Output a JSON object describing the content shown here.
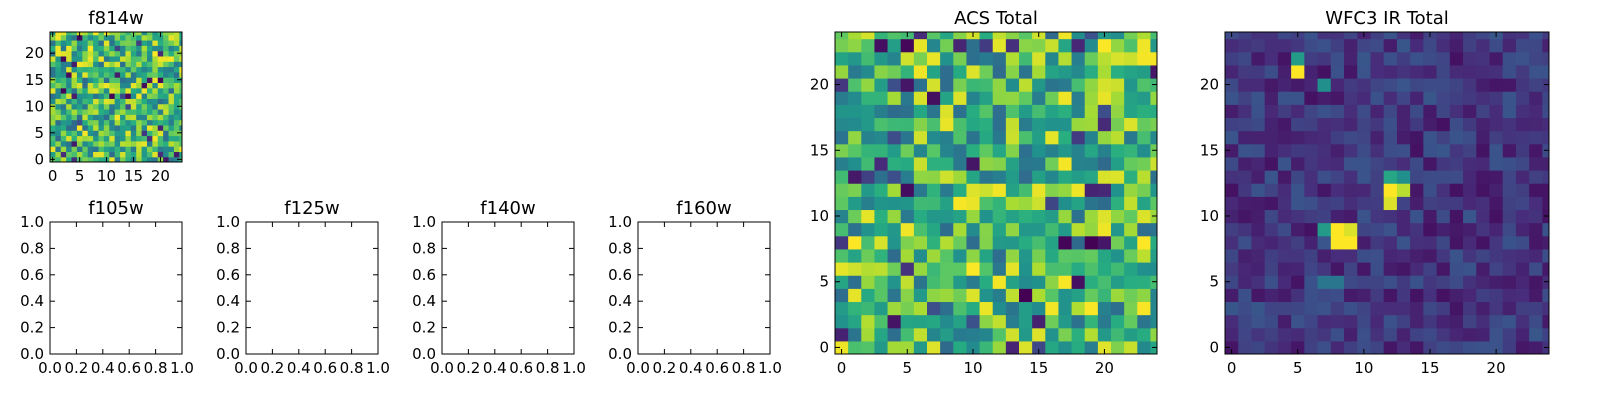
{
  "chart_data": [
    {
      "type": "heatmap",
      "title": "f814w",
      "grid_size": 25,
      "xticks": [
        "0",
        "5",
        "10",
        "15",
        "20"
      ],
      "yticks": [
        "0",
        "5",
        "10",
        "15",
        "20"
      ],
      "colormap": "viridis",
      "pattern": "noise"
    },
    {
      "type": "empty",
      "title": "f105w",
      "xticks": [
        "0.0",
        "0.2",
        "0.4",
        "0.6",
        "0.8",
        "1.0"
      ],
      "yticks": [
        "0.0",
        "0.2",
        "0.4",
        "0.6",
        "0.8",
        "1.0"
      ]
    },
    {
      "type": "empty",
      "title": "f125w",
      "xticks": [
        "0.0",
        "0.2",
        "0.4",
        "0.6",
        "0.8",
        "1.0"
      ],
      "yticks": [
        "0.0",
        "0.2",
        "0.4",
        "0.6",
        "0.8",
        "1.0"
      ]
    },
    {
      "type": "empty",
      "title": "f140w",
      "xticks": [
        "0.0",
        "0.2",
        "0.4",
        "0.6",
        "0.8",
        "1.0"
      ],
      "yticks": [
        "0.0",
        "0.2",
        "0.4",
        "0.6",
        "0.8",
        "1.0"
      ]
    },
    {
      "type": "empty",
      "title": "f160w",
      "xticks": [
        "0.0",
        "0.2",
        "0.4",
        "0.6",
        "0.8",
        "1.0"
      ],
      "yticks": [
        "0.0",
        "0.2",
        "0.4",
        "0.6",
        "0.8",
        "1.0"
      ]
    },
    {
      "type": "heatmap",
      "title": "ACS Total",
      "grid_size": 25,
      "xticks": [
        "0",
        "5",
        "10",
        "15",
        "20"
      ],
      "yticks": [
        "0",
        "5",
        "10",
        "15",
        "20"
      ],
      "colormap": "viridis",
      "pattern": "noise"
    },
    {
      "type": "heatmap",
      "title": "WFC3 IR Total",
      "grid_size": 25,
      "xticks": [
        "0",
        "5",
        "10",
        "15",
        "20"
      ],
      "yticks": [
        "0",
        "5",
        "10",
        "15",
        "20"
      ],
      "colormap": "viridis",
      "pattern": "sources",
      "bright_cells": [
        {
          "x": 5,
          "y": 21,
          "value": 1.0
        },
        {
          "x": 5,
          "y": 22,
          "value": 0.55
        },
        {
          "x": 12,
          "y": 12,
          "value": 1.0
        },
        {
          "x": 13,
          "y": 12,
          "value": 0.9
        },
        {
          "x": 12,
          "y": 11,
          "value": 0.95
        },
        {
          "x": 12,
          "y": 13,
          "value": 0.6
        },
        {
          "x": 13,
          "y": 13,
          "value": 0.5
        },
        {
          "x": 8,
          "y": 8,
          "value": 1.0
        },
        {
          "x": 9,
          "y": 8,
          "value": 1.0
        },
        {
          "x": 8,
          "y": 9,
          "value": 1.0
        },
        {
          "x": 9,
          "y": 9,
          "value": 0.95
        },
        {
          "x": 7,
          "y": 9,
          "value": 0.55
        },
        {
          "x": 7,
          "y": 20,
          "value": 0.5
        },
        {
          "x": 7,
          "y": 5,
          "value": 0.4
        },
        {
          "x": 8,
          "y": 5,
          "value": 0.4
        }
      ]
    }
  ]
}
